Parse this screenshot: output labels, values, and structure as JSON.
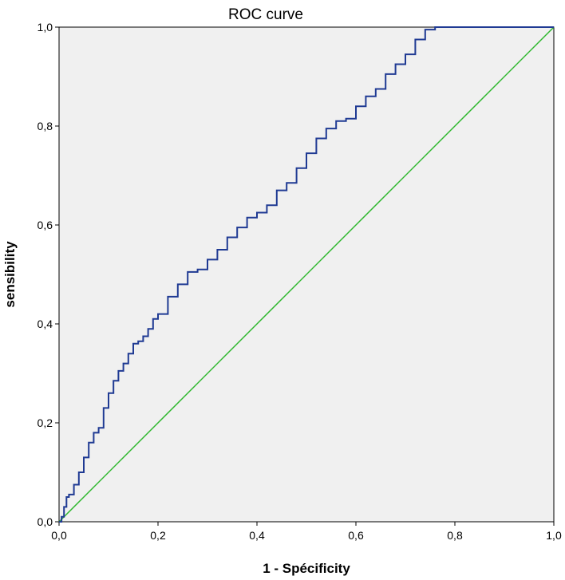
{
  "chart_data": {
    "type": "line",
    "title": "ROC curve",
    "xlabel": "1 - Spécificity",
    "ylabel": "sensibility",
    "xlim": [
      0,
      1
    ],
    "ylim": [
      0,
      1
    ],
    "xticks": [
      "0,0",
      "0,2",
      "0,4",
      "0,6",
      "0,8",
      "1,0"
    ],
    "yticks": [
      "0,0",
      "0,2",
      "0,4",
      "0,6",
      "0,8",
      "1,0"
    ],
    "grid": false,
    "colors": {
      "plot_background": "#f0f0f0",
      "roc_curve": "#1f3a93",
      "reference_line": "#2eb82e"
    },
    "series": [
      {
        "x": [
          0,
          0.005,
          0.01,
          0.015,
          0.02,
          0.03,
          0.04,
          0.05,
          0.06,
          0.07,
          0.08,
          0.09,
          0.1,
          0.11,
          0.12,
          0.13,
          0.14,
          0.15,
          0.16,
          0.17,
          0.18,
          0.19,
          0.2,
          0.22,
          0.24,
          0.26,
          0.28,
          0.3,
          0.32,
          0.34,
          0.36,
          0.38,
          0.4,
          0.42,
          0.44,
          0.46,
          0.48,
          0.5,
          0.52,
          0.54,
          0.56,
          0.58,
          0.6,
          0.62,
          0.64,
          0.66,
          0.68,
          0.7,
          0.72,
          0.74,
          0.76,
          0.8,
          0.9,
          1.0
        ],
        "y": [
          0,
          0.01,
          0.03,
          0.05,
          0.055,
          0.075,
          0.1,
          0.13,
          0.16,
          0.18,
          0.19,
          0.23,
          0.26,
          0.285,
          0.305,
          0.32,
          0.34,
          0.36,
          0.365,
          0.375,
          0.39,
          0.41,
          0.42,
          0.455,
          0.48,
          0.505,
          0.51,
          0.53,
          0.55,
          0.575,
          0.595,
          0.615,
          0.625,
          0.64,
          0.67,
          0.685,
          0.715,
          0.745,
          0.775,
          0.795,
          0.81,
          0.815,
          0.84,
          0.86,
          0.875,
          0.905,
          0.925,
          0.945,
          0.975,
          0.995,
          1.0,
          1.0,
          1.0,
          1.0
        ]
      },
      {
        "x": [
          0,
          1
        ],
        "y": [
          0,
          1
        ]
      }
    ]
  }
}
